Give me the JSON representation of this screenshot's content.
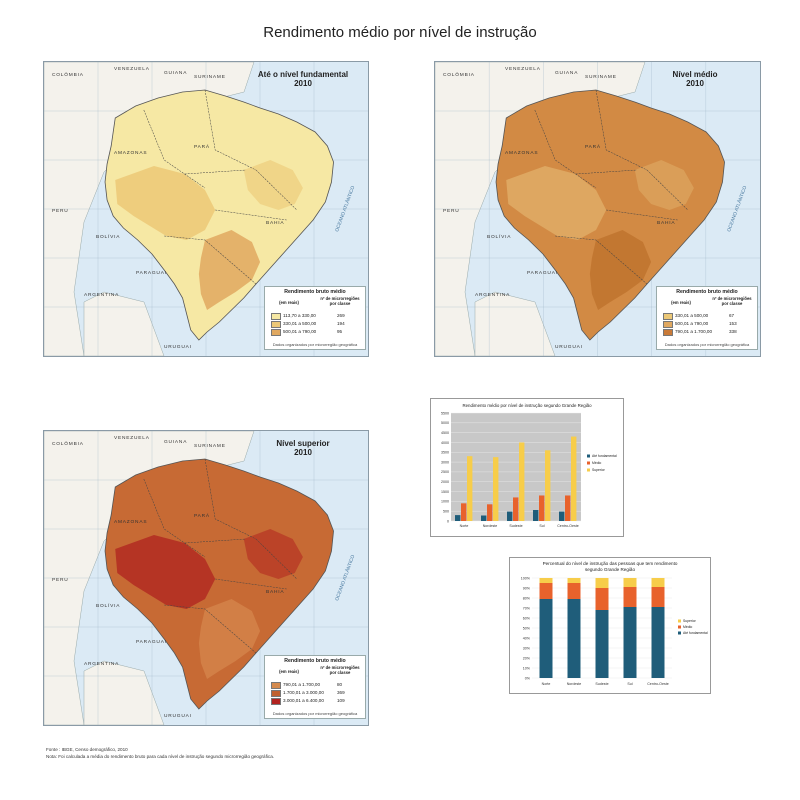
{
  "page": {
    "title": "Rendimento médio por nível de instrução",
    "source": "Fonte : IBGE, Censo demográfico, 2010",
    "note": "Nota: Foi calculada a média do rendimento bruto para cada nível de instrução segundo microrregião geográfica."
  },
  "map_labels": {
    "colombia": "COLÔMBIA",
    "venezuela": "VENEZUELA",
    "guiana": "GUIANA",
    "suriname": "SURINAME",
    "peru": "PERU",
    "bolivia": "BOLÍVIA",
    "paraguai": "PARAGUAI",
    "argentina": "ARGENTINA",
    "uruguai": "URUGUAI",
    "amazonas": "AMAZONAS",
    "para": "PARÁ",
    "bahia": "BAHIA",
    "atlantico": "OCEANO ATLÂNTICO"
  },
  "maps": [
    {
      "title_line1": "Até o nível fundamental",
      "title_line2": "2010",
      "fill": "#f6e8a4",
      "region_colors": [
        "#ecc877",
        "#e0a860"
      ],
      "legend": {
        "title": "Rendimento bruto médio",
        "col_unit": "(em reais)",
        "col_count": "nº de microrregiões por classe",
        "note": "Dados organizados por microrregião geográfica",
        "rows": [
          {
            "range": "113,70 a 330,00",
            "count": "269",
            "color": "#f6e8a4"
          },
          {
            "range": "330,01 a 500,00",
            "count": "194",
            "color": "#ecc877"
          },
          {
            "range": "500,01 a 790,00",
            "count": "95",
            "color": "#e0a860"
          }
        ]
      }
    },
    {
      "title_line1": "Nível médio",
      "title_line2": "2010",
      "fill": "#d28a44",
      "region_colors": [
        "#e0ab66",
        "#c0732e"
      ],
      "legend": {
        "title": "Rendimento bruto médio",
        "col_unit": "(em reais)",
        "col_count": "nº de microrregiões por classe",
        "note": "Dados organizados por microrregião geográfica",
        "rows": [
          {
            "range": "330,01 a 500,00",
            "count": "67",
            "color": "#ecc877"
          },
          {
            "range": "500,01 a 790,00",
            "count": "153",
            "color": "#e0a860"
          },
          {
            "range": "790,01 a 1.700,00",
            "count": "338",
            "color": "#c97a38"
          }
        ]
      }
    },
    {
      "title_line1": "Nível superior",
      "title_line2": "2010",
      "fill": "#c76a34",
      "region_colors": [
        "#b22a22",
        "#d4834a"
      ],
      "legend": {
        "title": "Rendimento bruto médio",
        "col_unit": "(em reais)",
        "col_count": "nº de microrregiões por classe",
        "note": "Dados organizados por microrregião geográfica",
        "rows": [
          {
            "range": "790,01 a 1.700,00",
            "count": "80",
            "color": "#d48a4e"
          },
          {
            "range": "1.700,01 a 3.000,00",
            "count": "369",
            "color": "#c0602e"
          },
          {
            "range": "3.000,01 a 6.400,00",
            "count": "109",
            "color": "#b2231f"
          }
        ]
      }
    }
  ],
  "chart_data": [
    {
      "type": "bar",
      "title": "Rendimento médio por nível de instrução segundo Grande Região",
      "categories": [
        "Norte",
        "Nordeste",
        "Sudeste",
        "Sul",
        "Centro-Oeste"
      ],
      "ylim": [
        0,
        5500
      ],
      "yticks": [
        "0",
        "500",
        "1000",
        "1500",
        "2000",
        "2500",
        "3000",
        "3500",
        "4000",
        "4500",
        "5000",
        "5500"
      ],
      "grid": true,
      "legend_position": "right",
      "series": [
        {
          "name": "Até fundamental",
          "color": "#1f5d7a",
          "values": [
            300,
            280,
            480,
            560,
            480
          ]
        },
        {
          "name": "Médio",
          "color": "#e8622c",
          "values": [
            900,
            850,
            1200,
            1300,
            1300
          ]
        },
        {
          "name": "Superior",
          "color": "#f7cd4a",
          "values": [
            3300,
            3250,
            4000,
            3600,
            4300
          ]
        }
      ]
    },
    {
      "type": "bar",
      "stacked": true,
      "title_line1": "Percentual do nível de instrução das pessoas que tem rendimento",
      "title_line2": "segundo Grande Região",
      "categories": [
        "Norte",
        "Nordeste",
        "Sudeste",
        "Sul",
        "Centro-Oeste"
      ],
      "ylim": [
        0,
        100
      ],
      "yticks": [
        "0%",
        "10%",
        "20%",
        "30%",
        "40%",
        "50%",
        "60%",
        "70%",
        "80%",
        "90%",
        "100%"
      ],
      "legend_position": "right",
      "series": [
        {
          "name": "Até fundamental",
          "color": "#1f5d7a",
          "values": [
            79,
            79,
            68,
            71,
            71
          ]
        },
        {
          "name": "Médio",
          "color": "#e8622c",
          "values": [
            16,
            16,
            22,
            20,
            20
          ]
        },
        {
          "name": "Superior",
          "color": "#f7cd4a",
          "values": [
            5,
            5,
            10,
            9,
            9
          ]
        }
      ],
      "legend_order": [
        "Superior",
        "Médio",
        "Até fundamental"
      ]
    }
  ]
}
